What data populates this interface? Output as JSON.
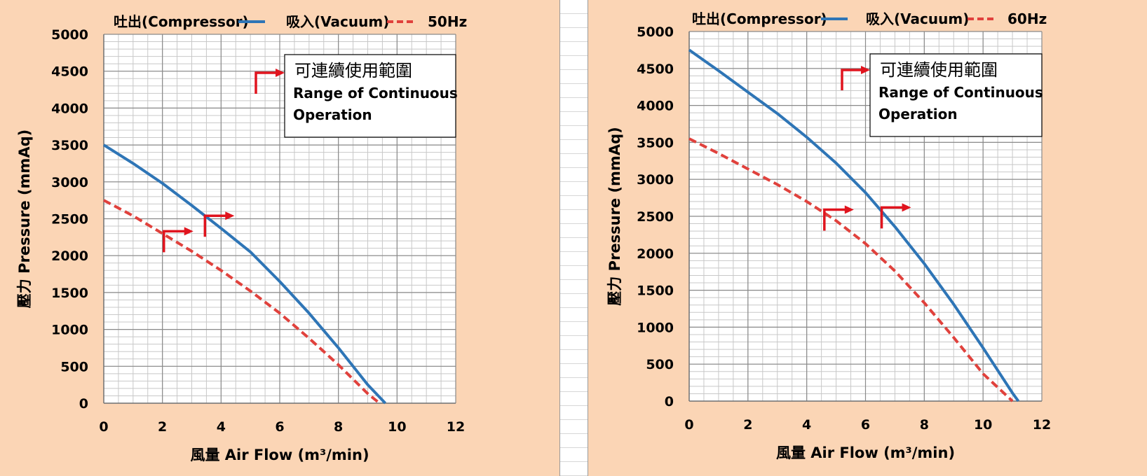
{
  "chart_data": [
    {
      "type": "line",
      "frequency_label": "50Hz",
      "xlabel": "風量 Air Flow (m³/min)",
      "ylabel": "壓力 Pressure (mmAq)",
      "xlim": [
        0,
        12
      ],
      "ylim": [
        0,
        5000
      ],
      "xticks": [
        "0",
        "2",
        "4",
        "6",
        "8",
        "10",
        "12"
      ],
      "yticks": [
        "0",
        "500",
        "1000",
        "1500",
        "2000",
        "2500",
        "3000",
        "3500",
        "4000",
        "4500",
        "5000"
      ],
      "grid": true,
      "legend_position": "top",
      "annotation": {
        "line1": "可連續使用範圍",
        "line2": "Range of Continuous",
        "line3": "Operation"
      },
      "series": [
        {
          "name": "吐出(Compressor)",
          "color": "#2e75b6",
          "style": "solid",
          "x": [
            0,
            1,
            2,
            3,
            4,
            5,
            6,
            7,
            8,
            9,
            9.6
          ],
          "y": [
            3500,
            3250,
            2980,
            2680,
            2370,
            2050,
            1650,
            1220,
            750,
            250,
            0
          ]
        },
        {
          "name": "吸入(Vacuum)",
          "color": "#e0413c",
          "style": "dashed",
          "x": [
            0,
            1,
            2,
            3,
            4,
            5,
            6,
            7,
            8,
            9,
            9.4
          ],
          "y": [
            2750,
            2540,
            2300,
            2060,
            1800,
            1520,
            1220,
            880,
            520,
            130,
            0
          ]
        }
      ],
      "markers": [
        {
          "x": 2.05,
          "y": 2330
        },
        {
          "x": 3.45,
          "y": 2540
        }
      ]
    },
    {
      "type": "line",
      "frequency_label": "60Hz",
      "xlabel": "風量 Air Flow (m³/min)",
      "ylabel": "壓力 Pressure (mmAq)",
      "xlim": [
        0,
        12
      ],
      "ylim": [
        0,
        5000
      ],
      "xticks": [
        "0",
        "2",
        "4",
        "6",
        "8",
        "10",
        "12"
      ],
      "yticks": [
        "0",
        "500",
        "1000",
        "1500",
        "2000",
        "2500",
        "3000",
        "3500",
        "4000",
        "4500",
        "5000"
      ],
      "grid": true,
      "legend_position": "top",
      "annotation": {
        "line1": "可連續使用範圍",
        "line2": "Range of Continuous",
        "line3": "Operation"
      },
      "series": [
        {
          "name": "吐出(Compressor)",
          "color": "#2e75b6",
          "style": "solid",
          "x": [
            0,
            1,
            2,
            3,
            4,
            5,
            6,
            7,
            8,
            9,
            10,
            11,
            11.2
          ],
          "y": [
            4750,
            4470,
            4180,
            3890,
            3570,
            3220,
            2820,
            2360,
            1860,
            1310,
            720,
            110,
            0
          ]
        },
        {
          "name": "吸入(Vacuum)",
          "color": "#e0413c",
          "style": "dashed",
          "x": [
            0,
            1,
            2,
            3,
            4,
            5,
            6,
            7,
            8,
            9,
            10,
            11
          ],
          "y": [
            3550,
            3350,
            3140,
            2930,
            2700,
            2440,
            2130,
            1760,
            1330,
            860,
            370,
            0
          ]
        }
      ],
      "markers": [
        {
          "x": 4.6,
          "y": 2590
        },
        {
          "x": 6.55,
          "y": 2620
        }
      ]
    }
  ]
}
